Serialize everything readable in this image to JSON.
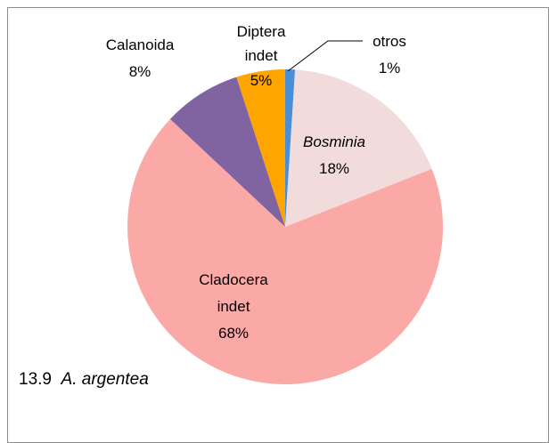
{
  "chart_data": {
    "type": "pie",
    "figure_number": "13.9",
    "title": "A. argentea",
    "categories": [
      "otros",
      "Bosminia",
      "Cladocera indet",
      "Calanoida",
      "Diptera indet"
    ],
    "values": [
      1,
      18,
      68,
      8,
      5
    ],
    "value_labels": [
      "1%",
      "18%",
      "68%",
      "8%",
      "5%"
    ],
    "colors": [
      "#4a8fd6",
      "#f2dcdb",
      "#fba9a6",
      "#8064a2",
      "#ffa500"
    ],
    "italic_categories": [
      false,
      true,
      false,
      false,
      false
    ]
  }
}
